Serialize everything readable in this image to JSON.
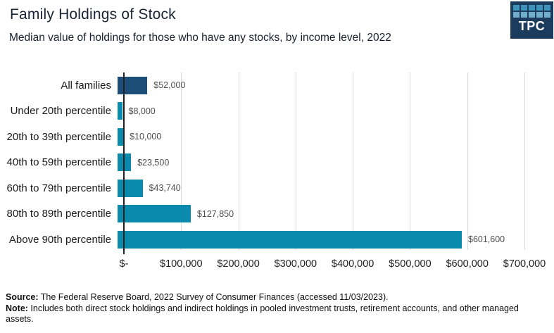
{
  "header": {
    "title": "Family Holdings of Stock",
    "subtitle": "Median value of holdings for those who have any stocks, by income level, 2022"
  },
  "logo": {
    "text": "TPC"
  },
  "chart_data": {
    "type": "bar",
    "orientation": "horizontal",
    "title": "Family Holdings of Stock",
    "subtitle": "Median value of holdings for those who have any stocks, by income level, 2022",
    "categories": [
      "All families",
      "Under 20th percentile",
      "20th to 39th percentile",
      "40th to 59th percentile",
      "60th to 79th percentile",
      "80th to 89th percentile",
      "Above 90th percentile"
    ],
    "values": [
      52000,
      8000,
      10000,
      23500,
      43740,
      127850,
      601600
    ],
    "value_labels": [
      "$52,000",
      "$8,000",
      "$10,000",
      "$23,500",
      "$43,740",
      "$127,850",
      "$601,600"
    ],
    "x_tick_labels": [
      "$-",
      "$100,000",
      "$200,000",
      "$300,000",
      "$400,000",
      "$500,000",
      "$600,000",
      "$700,000"
    ],
    "xlim": [
      0,
      700000
    ],
    "grid": "vertical-only",
    "legend": "none",
    "highlight_index": 0,
    "bar_color_highlight": "#1d4e79",
    "bar_color_default": "#0a8bad"
  },
  "footer": {
    "source_label": "Source:",
    "source_text": " The Federal Reserve Board, 2022 Survey of Consumer Finances (accessed 11/03/2023).",
    "note_label": "Note:",
    "note_text": " Includes both direct stock holdings and indirect holdings in pooled investment trusts, retirement accounts, and other managed assets."
  }
}
